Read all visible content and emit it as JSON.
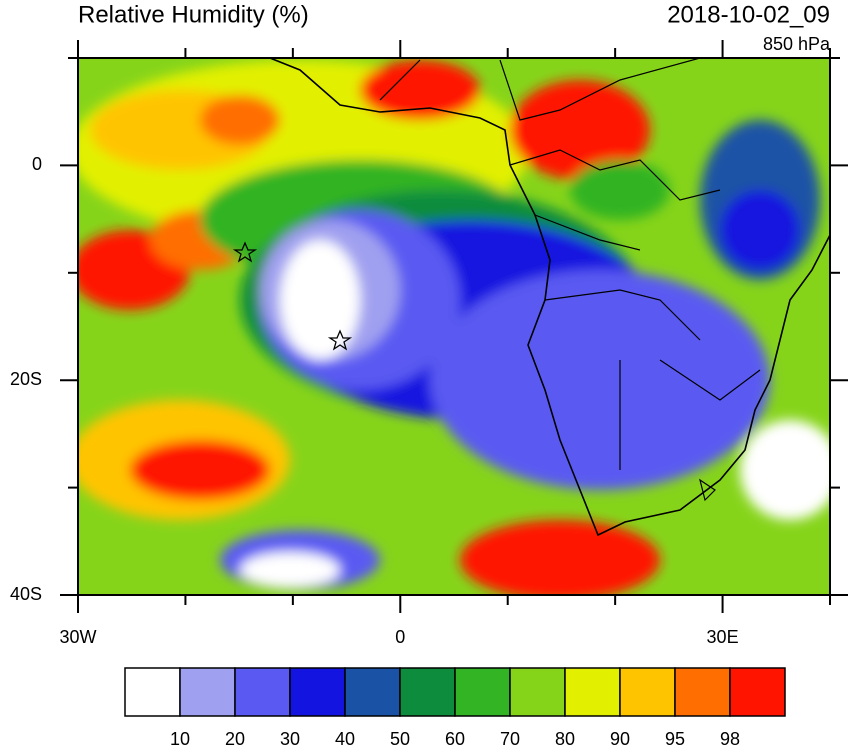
{
  "header": {
    "title": "Relative Humidity (%)",
    "time": "2018-10-02_09",
    "level": "850 hPa"
  },
  "map": {
    "lon_range": [
      -30,
      40
    ],
    "lat_range": [
      10,
      -40
    ],
    "lon_ticks": [
      {
        "value": -30,
        "label": "30W"
      },
      {
        "value": 0,
        "label": "0"
      },
      {
        "value": 30,
        "label": "30E"
      }
    ],
    "lat_ticks": [
      {
        "value": 0,
        "label": "0"
      },
      {
        "value": -20,
        "label": "20S"
      },
      {
        "value": -40,
        "label": "40S"
      }
    ],
    "lon_minor_ticks": [
      -20,
      -10,
      10,
      20,
      40
    ],
    "lat_minor_ticks": [
      10,
      -10,
      -30
    ]
  },
  "colorbar": {
    "colors": [
      "#ffffff",
      "#a0a0f0",
      "#5a5af2",
      "#1414e0",
      "#1a52a6",
      "#0c8c3c",
      "#32b424",
      "#86d41a",
      "#e2f000",
      "#ffc400",
      "#ff6e00",
      "#ff1400"
    ],
    "labels": [
      10,
      20,
      30,
      40,
      50,
      60,
      70,
      80,
      90,
      95,
      98
    ]
  }
}
